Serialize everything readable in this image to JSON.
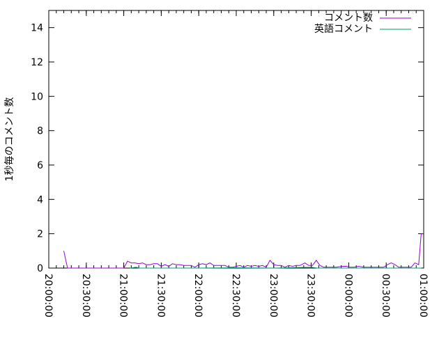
{
  "chart_data": {
    "type": "line",
    "title": "",
    "xlabel": "",
    "ylabel": "1秒毎のコメント数",
    "xlim": [
      "20:00:00",
      "01:00:00"
    ],
    "ylim": [
      0,
      15
    ],
    "x_ticks": [
      "20:00:00",
      "20:30:00",
      "21:00:00",
      "21:30:00",
      "22:00:00",
      "22:30:00",
      "23:00:00",
      "23:30:00",
      "00:00:00",
      "00:30:00",
      "01:00:00"
    ],
    "y_ticks": [
      0,
      2,
      4,
      6,
      8,
      10,
      12,
      14
    ],
    "grid": false,
    "legend": "top-right",
    "series": [
      {
        "name": "コメント数",
        "color": "#9400d3",
        "points": [
          [
            "20:12:00",
            1.0
          ],
          [
            "20:15:00",
            0
          ],
          [
            "20:30:00",
            0
          ],
          [
            "20:45:00",
            0
          ],
          [
            "21:00:00",
            0
          ],
          [
            "21:03:00",
            0.4
          ],
          [
            "21:06:00",
            0.3
          ],
          [
            "21:09:00",
            0.3
          ],
          [
            "21:12:00",
            0.25
          ],
          [
            "21:15:00",
            0.3
          ],
          [
            "21:18:00",
            0.2
          ],
          [
            "21:21:00",
            0.2
          ],
          [
            "21:24:00",
            0.25
          ],
          [
            "21:27:00",
            0.25
          ],
          [
            "21:30:00",
            0.1
          ],
          [
            "21:33:00",
            0.2
          ],
          [
            "21:36:00",
            0.1
          ],
          [
            "21:39:00",
            0.25
          ],
          [
            "21:42:00",
            0.2
          ],
          [
            "21:45:00",
            0.2
          ],
          [
            "21:48:00",
            0.15
          ],
          [
            "21:51:00",
            0.15
          ],
          [
            "21:54:00",
            0.15
          ],
          [
            "21:57:00",
            0.05
          ],
          [
            "22:00:00",
            0.2
          ],
          [
            "22:03:00",
            0.25
          ],
          [
            "22:06:00",
            0.2
          ],
          [
            "22:09:00",
            0.3
          ],
          [
            "22:12:00",
            0.15
          ],
          [
            "22:15:00",
            0.15
          ],
          [
            "22:18:00",
            0.15
          ],
          [
            "22:21:00",
            0.15
          ],
          [
            "22:24:00",
            0.05
          ],
          [
            "22:27:00",
            0.05
          ],
          [
            "22:30:00",
            0.1
          ],
          [
            "22:33:00",
            0.15
          ],
          [
            "22:36:00",
            0.05
          ],
          [
            "22:39:00",
            0.15
          ],
          [
            "22:42:00",
            0.1
          ],
          [
            "22:45:00",
            0.15
          ],
          [
            "22:48:00",
            0.1
          ],
          [
            "22:51:00",
            0.15
          ],
          [
            "22:54:00",
            0.05
          ],
          [
            "22:57:00",
            0.45
          ],
          [
            "23:00:00",
            0.2
          ],
          [
            "23:03:00",
            0.15
          ],
          [
            "23:06:00",
            0.15
          ],
          [
            "23:09:00",
            0.05
          ],
          [
            "23:12:00",
            0.15
          ],
          [
            "23:15:00",
            0.1
          ],
          [
            "23:18:00",
            0.15
          ],
          [
            "23:21:00",
            0.15
          ],
          [
            "23:25:00",
            0.3
          ],
          [
            "23:28:00",
            0.15
          ],
          [
            "23:31:00",
            0.15
          ],
          [
            "23:34:00",
            0.45
          ],
          [
            "23:37:00",
            0.15
          ],
          [
            "23:40:00",
            0.05
          ],
          [
            "23:45:00",
            0.05
          ],
          [
            "23:50:00",
            0.05
          ],
          [
            "23:55:00",
            0.1
          ],
          [
            "23:58:00",
            0.1
          ],
          [
            "00:01:00",
            0.05
          ],
          [
            "00:04:00",
            0.05
          ],
          [
            "00:08:00",
            0.1
          ],
          [
            "00:12:00",
            0.05
          ],
          [
            "00:16:00",
            0.05
          ],
          [
            "00:20:00",
            0.05
          ],
          [
            "00:24:00",
            0.05
          ],
          [
            "00:28:00",
            0.05
          ],
          [
            "00:31:00",
            0.2
          ],
          [
            "00:34:00",
            0.3
          ],
          [
            "00:37:00",
            0.2
          ],
          [
            "00:40:00",
            0.05
          ],
          [
            "00:45:00",
            0.05
          ],
          [
            "00:50:00",
            0.05
          ],
          [
            "00:53:00",
            0.3
          ],
          [
            "00:56:00",
            0.2
          ],
          [
            "00:58:00",
            2.0
          ],
          [
            "01:00:00",
            2.0
          ]
        ]
      },
      {
        "name": "英語コメント",
        "color": "#009e73",
        "points": [
          [
            "21:05:00",
            0
          ],
          [
            "21:10:00",
            0.05
          ],
          [
            "21:12:00",
            0
          ],
          [
            "22:00:00",
            0
          ],
          [
            "22:30:00",
            0.02
          ],
          [
            "23:00:00",
            0
          ],
          [
            "23:30:00",
            0.05
          ],
          [
            "23:35:00",
            0
          ],
          [
            "00:00:00",
            0
          ],
          [
            "00:30:00",
            0
          ],
          [
            "00:58:00",
            0
          ]
        ]
      }
    ]
  }
}
